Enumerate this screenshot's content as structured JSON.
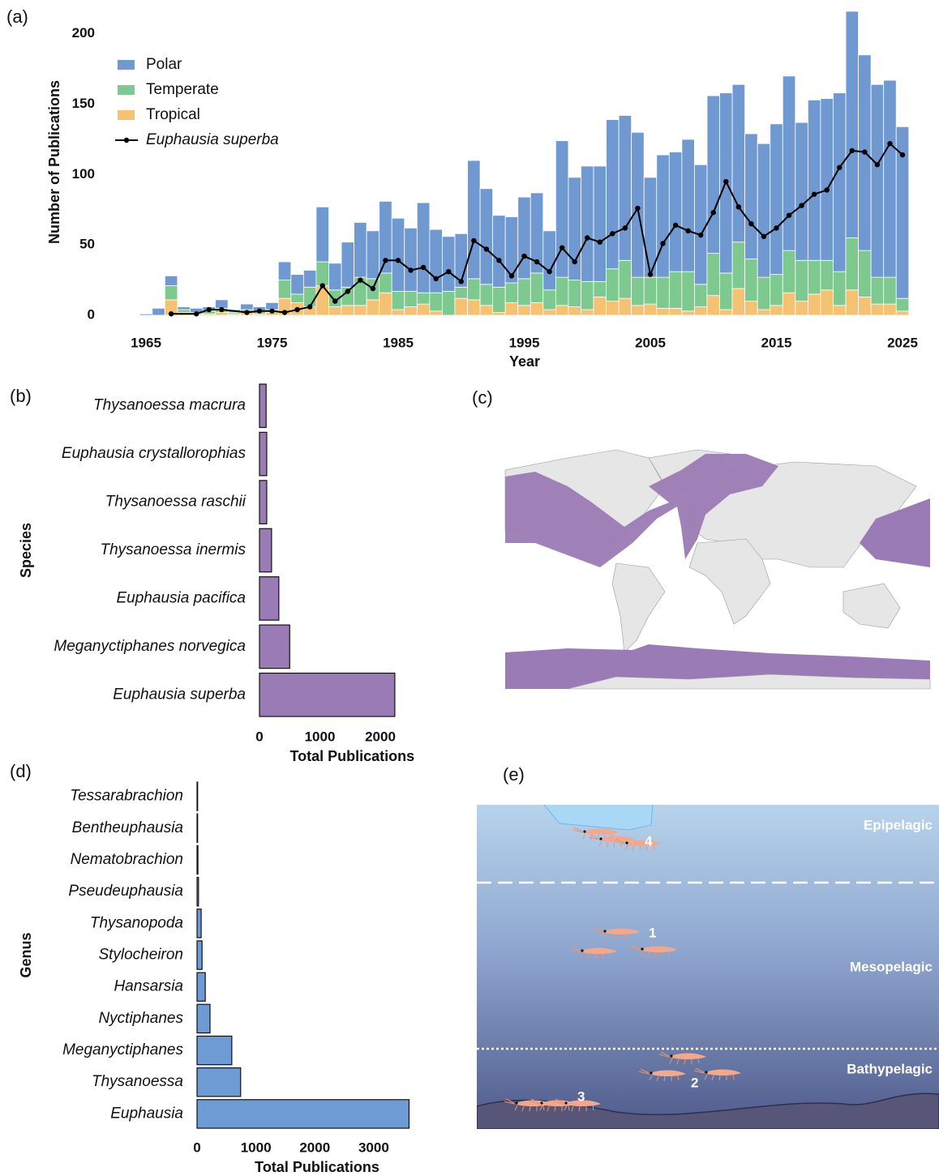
{
  "panel_labels": [
    "(a)",
    "(b)",
    "(c)",
    "(d)",
    "(e)"
  ],
  "zone_diagram": {
    "zones": [
      "Epipelagic",
      "Mesopelagic",
      "Bathypelagic"
    ],
    "markers": [
      "1",
      "2",
      "3",
      "4"
    ]
  },
  "chart_data": [
    {
      "type": "bar",
      "stacked": true,
      "xlabel": "Year",
      "ylabel": "Number of Publications",
      "x": [
        1965,
        1966,
        1967,
        1968,
        1969,
        1970,
        1971,
        1972,
        1973,
        1974,
        1975,
        1976,
        1977,
        1978,
        1979,
        1980,
        1981,
        1982,
        1983,
        1984,
        1985,
        1986,
        1987,
        1988,
        1989,
        1990,
        1991,
        1992,
        1993,
        1994,
        1995,
        1996,
        1997,
        1998,
        1999,
        2000,
        2001,
        2002,
        2003,
        2004,
        2005,
        2006,
        2007,
        2008,
        2009,
        2010,
        2011,
        2012,
        2013,
        2014,
        2015,
        2016,
        2017,
        2018,
        2019,
        2020,
        2021,
        2022,
        2023,
        2024,
        2025
      ],
      "series": [
        {
          "name": "Polar",
          "color": "#7099d1",
          "values": [
            1,
            5,
            7,
            2,
            3,
            3,
            6,
            2,
            4,
            3,
            5,
            13,
            14,
            12,
            39,
            19,
            32,
            39,
            34,
            51,
            52,
            45,
            64,
            45,
            39,
            38,
            84,
            68,
            51,
            47,
            58,
            57,
            42,
            97,
            73,
            82,
            82,
            106,
            103,
            103,
            71,
            87,
            85,
            94,
            85,
            112,
            128,
            112,
            89,
            95,
            107,
            124,
            98,
            114,
            115,
            127,
            161,
            139,
            137,
            140,
            122
          ]
        },
        {
          "name": "Temperate",
          "color": "#7dc98f",
          "values": [
            0,
            0,
            10,
            2,
            1,
            2,
            3,
            1,
            2,
            2,
            2,
            13,
            6,
            14,
            17,
            12,
            13,
            20,
            15,
            14,
            13,
            11,
            8,
            13,
            17,
            8,
            15,
            15,
            18,
            14,
            19,
            21,
            14,
            20,
            19,
            20,
            11,
            23,
            27,
            20,
            19,
            22,
            26,
            28,
            16,
            30,
            26,
            33,
            30,
            23,
            22,
            30,
            29,
            24,
            21,
            24,
            37,
            33,
            19,
            19,
            9
          ]
        },
        {
          "name": "Tropical",
          "color": "#f5c274",
          "values": [
            0,
            0,
            11,
            2,
            1,
            1,
            2,
            1,
            2,
            1,
            2,
            12,
            9,
            6,
            21,
            6,
            7,
            7,
            11,
            16,
            4,
            6,
            8,
            3,
            0,
            12,
            11,
            7,
            2,
            9,
            7,
            9,
            4,
            7,
            6,
            4,
            13,
            10,
            12,
            7,
            8,
            5,
            5,
            3,
            6,
            14,
            4,
            19,
            10,
            4,
            7,
            16,
            10,
            15,
            18,
            7,
            18,
            13,
            8,
            8,
            3
          ]
        },
        {
          "name": "Euphausia superba",
          "type": "line",
          "color": "#000000",
          "x": [
            1967,
            1969,
            1970,
            1971,
            1973,
            1974,
            1975,
            1976,
            1977,
            1978,
            1979,
            1980,
            1981,
            1982,
            1983,
            1984,
            1985,
            1986,
            1987,
            1988,
            1989,
            1990,
            1991,
            1992,
            1993,
            1994,
            1995,
            1996,
            1997,
            1998,
            1999,
            2000,
            2001,
            2002,
            2003,
            2004,
            2005,
            2006,
            2007,
            2008,
            2009,
            2010,
            2011,
            2012,
            2013,
            2014,
            2015,
            2016,
            2017,
            2018,
            2019,
            2020,
            2021,
            2022,
            2023,
            2024,
            2025
          ],
          "values": [
            1,
            1,
            4,
            4,
            2,
            3,
            3,
            2,
            4,
            6,
            21,
            10,
            17,
            25,
            19,
            39,
            39,
            32,
            34,
            26,
            31,
            24,
            53,
            47,
            39,
            28,
            42,
            38,
            31,
            48,
            38,
            55,
            52,
            58,
            62,
            76,
            29,
            51,
            64,
            60,
            57,
            73,
            95,
            77,
            65,
            56,
            62,
            71,
            78,
            86,
            89,
            105,
            117,
            116,
            107,
            122,
            114
          ]
        }
      ],
      "xlim": [
        1964,
        2026
      ],
      "xticks": [
        1965,
        1975,
        1985,
        1995,
        2005,
        2015,
        2025
      ],
      "ylim": [
        0,
        220
      ],
      "yticks": [
        0,
        50,
        100,
        150,
        200
      ]
    },
    {
      "type": "barh",
      "xlabel": "Total Publications",
      "ylabel": "Species",
      "color": "#9b7bb5",
      "categories": [
        "Thysanoessa macrura",
        "Euphausia crystallorophias",
        "Thysanoessa raschii",
        "Thysanoessa inermis",
        "Euphausia pacifica",
        "Meganyctiphanes norvegica",
        "Euphausia superba"
      ],
      "values": [
        110,
        120,
        120,
        200,
        320,
        500,
        2240
      ],
      "xlim": [
        0,
        2800
      ],
      "xticks": [
        0,
        1000,
        2000
      ]
    },
    {
      "type": "barh",
      "xlabel": "Total Publications",
      "ylabel": "Genus",
      "color": "#6f9bd4",
      "categories": [
        "Tessarabrachion",
        "Bentheuphausia",
        "Nematobrachion",
        "Pseudeuphausia",
        "Thysanopoda",
        "Stylocheiron",
        "Hansarsia",
        "Nyctiphanes",
        "Meganyctiphanes",
        "Thysanoessa",
        "Euphausia"
      ],
      "values": [
        10,
        10,
        15,
        25,
        70,
        85,
        140,
        220,
        590,
        740,
        3600
      ],
      "xlim": [
        0,
        3800
      ],
      "xticks": [
        0,
        1000,
        2000,
        3000
      ]
    }
  ]
}
